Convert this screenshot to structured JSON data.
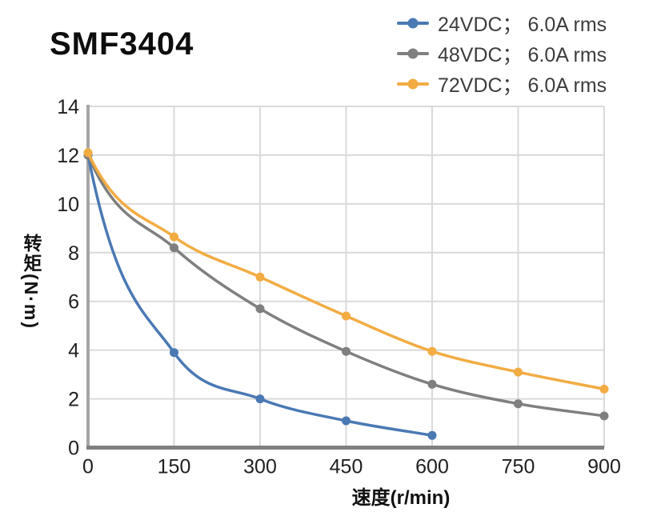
{
  "chart_data": {
    "type": "line",
    "title": "SMF3404",
    "xlabel": "速度(r/min)",
    "ylabel": "转矩(N·m)",
    "xlim": [
      0,
      900
    ],
    "ylim": [
      0,
      14
    ],
    "x_ticks": [
      0,
      150,
      300,
      450,
      600,
      750,
      900
    ],
    "y_ticks": [
      0,
      2,
      4,
      6,
      8,
      10,
      12,
      14
    ],
    "grid": true,
    "legend_position": "top-right",
    "series": [
      {
        "name": "24VDC； 6.0A rms",
        "color": "#4A79B4",
        "x": [
          0,
          150,
          300,
          450,
          600
        ],
        "y": [
          12.0,
          3.9,
          2.0,
          1.1,
          0.5
        ]
      },
      {
        "name": "48VDC； 6.0A rms",
        "color": "#7F7F7F",
        "x": [
          0,
          150,
          300,
          450,
          600,
          750,
          900
        ],
        "y": [
          12.0,
          8.2,
          5.7,
          3.95,
          2.6,
          1.8,
          1.3
        ]
      },
      {
        "name": "72VDC； 6.0A rms",
        "color": "#F2AC43",
        "x": [
          0,
          150,
          300,
          450,
          600,
          750,
          900
        ],
        "y": [
          12.1,
          8.65,
          7.0,
          5.4,
          3.95,
          3.1,
          2.4
        ]
      }
    ],
    "style": {
      "grid_color": "#DADADA",
      "left_axis_color": "#A6A6A6",
      "bottom_axis_color": "#808080",
      "tick_label_color": "#1f1f1f",
      "legend_text_color": "#3d3d3d",
      "title_color": "#0d0d0d",
      "background": "#ffffff"
    }
  }
}
